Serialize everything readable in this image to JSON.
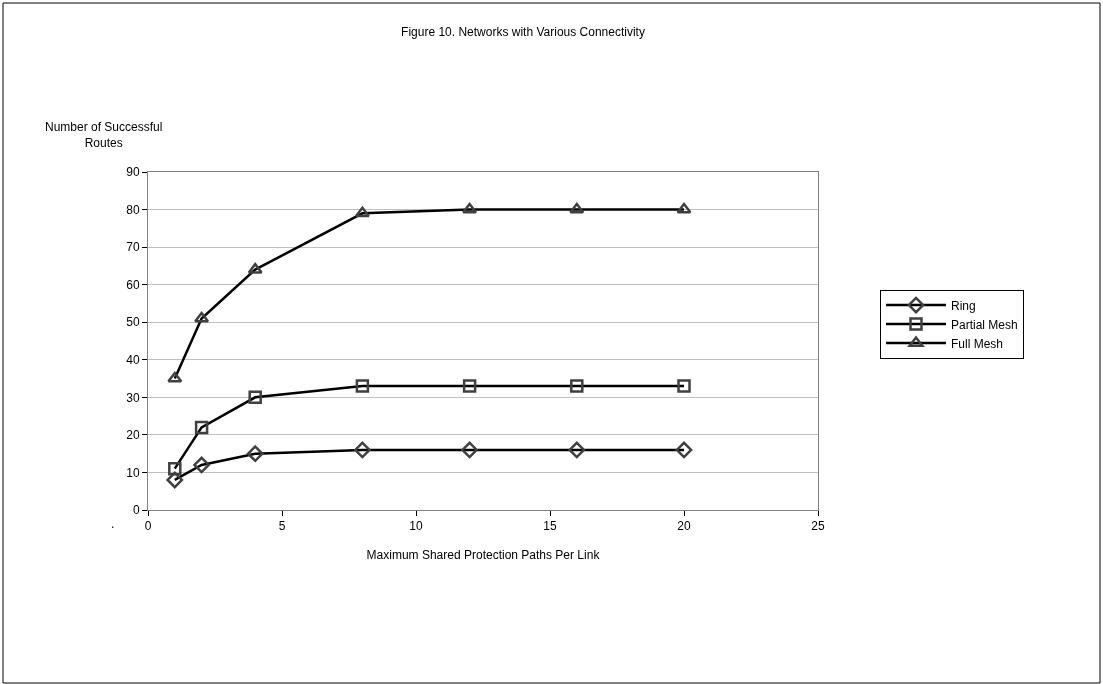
{
  "chart_data": {
    "type": "line",
    "title": "Figure 10. Networks with Various Connectivity",
    "xlabel": "Maximum Shared Protection Paths Per Link",
    "ylabel": "Number of Successful\nRoutes",
    "x": [
      1,
      2,
      4,
      8,
      12,
      16,
      20
    ],
    "series": [
      {
        "name": "Ring",
        "color": "#000000",
        "marker": "diamond",
        "values": [
          8,
          12,
          15,
          16,
          16,
          16,
          16
        ]
      },
      {
        "name": "Partial Mesh",
        "color": "#000000",
        "marker": "square",
        "values": [
          11,
          22,
          30,
          33,
          33,
          33,
          33
        ]
      },
      {
        "name": "Full Mesh",
        "color": "#000000",
        "marker": "triangle",
        "values": [
          35,
          51,
          64,
          79,
          80,
          80,
          80
        ]
      }
    ],
    "xlim": [
      0,
      25
    ],
    "xticks": [
      0,
      5,
      10,
      15,
      20,
      25
    ],
    "ylim": [
      0,
      90
    ],
    "yticks": [
      0,
      10,
      20,
      30,
      40,
      50,
      60,
      70,
      80,
      90
    ],
    "grid": "y",
    "legend": "right",
    "line_style": "solid",
    "annotations": [
      "."
    ]
  }
}
